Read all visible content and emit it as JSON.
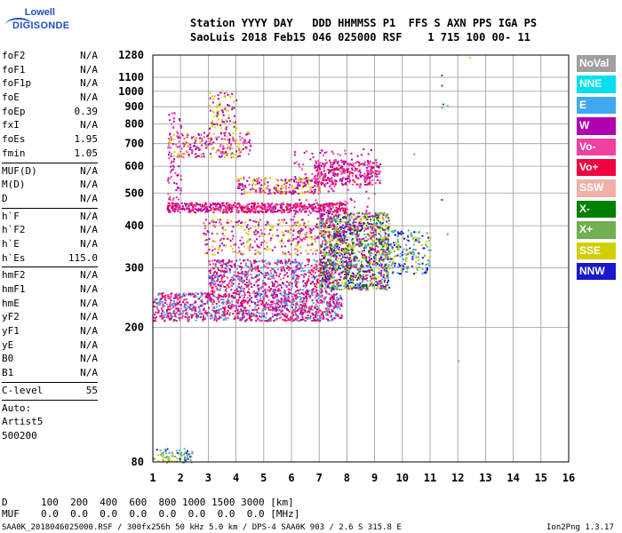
{
  "logo": {
    "line1": "Lowell",
    "line2": "DIGISONDE"
  },
  "header": {
    "row1": "Station YYYY DAY   DDD HHMMSS P1  FFS S AXN PPS IGA PS",
    "row2": "SaoLuis 2018 Feb15 046 025000 RSF    1 715 100 00- 11"
  },
  "parameters": {
    "group1": [
      {
        "name": "foF2",
        "value": "N/A"
      },
      {
        "name": "foF1",
        "value": "N/A"
      },
      {
        "name": "foF1p",
        "value": "N/A"
      },
      {
        "name": "foE",
        "value": "N/A"
      },
      {
        "name": "foEp",
        "value": "0.39"
      },
      {
        "name": "fxI",
        "value": "N/A"
      },
      {
        "name": "foEs",
        "value": "1.95"
      },
      {
        "name": "fmin",
        "value": "1.05"
      }
    ],
    "group2": [
      {
        "name": "MUF(D)",
        "value": "N/A"
      },
      {
        "name": "M(D)",
        "value": "N/A"
      },
      {
        "name": "D",
        "value": "N/A"
      }
    ],
    "group3": [
      {
        "name": "h`F",
        "value": "N/A"
      },
      {
        "name": "h`F2",
        "value": "N/A"
      },
      {
        "name": "h`E",
        "value": "N/A"
      },
      {
        "name": "h`Es",
        "value": "115.0"
      }
    ],
    "group4": [
      {
        "name": "hmF2",
        "value": "N/A"
      },
      {
        "name": "hmF1",
        "value": "N/A"
      },
      {
        "name": "hmE",
        "value": "N/A"
      },
      {
        "name": "yF2",
        "value": "N/A"
      },
      {
        "name": "yF1",
        "value": "N/A"
      },
      {
        "name": "yE",
        "value": "N/A"
      },
      {
        "name": "B0",
        "value": "N/A"
      },
      {
        "name": "B1",
        "value": "N/A"
      }
    ],
    "group5": [
      {
        "name": "C-level",
        "value": "55"
      }
    ],
    "autoscaling": [
      "Auto:",
      "Artist5",
      "500200"
    ]
  },
  "legend": [
    {
      "label": "NoVal",
      "color": "#a0a0a0"
    },
    {
      "label": "NNE",
      "color": "#00e0f0"
    },
    {
      "label": "E",
      "color": "#40a8f0"
    },
    {
      "label": "W",
      "color": "#b000b0"
    },
    {
      "label": "Vo-",
      "color": "#f040a0"
    },
    {
      "label": "Vo+",
      "color": "#f00040"
    },
    {
      "label": "SSW",
      "color": "#f0b0a8"
    },
    {
      "label": "X-",
      "color": "#008000"
    },
    {
      "label": "X+",
      "color": "#70b050"
    },
    {
      "label": "SSE",
      "color": "#d0d000"
    },
    {
      "label": "NNW",
      "color": "#1818d0"
    }
  ],
  "chart_data": {
    "type": "scatter",
    "xlim": [
      1,
      16
    ],
    "ylim": [
      80,
      1280
    ],
    "x_ticks": [
      "1",
      "2",
      "3",
      "4",
      "5",
      "6",
      "7",
      "8",
      "9",
      "10",
      "11",
      "12",
      "13",
      "14",
      "15",
      "16"
    ],
    "y_ticks": [
      "80",
      "200",
      "300",
      "400",
      "500",
      "600",
      "700",
      "800",
      "900",
      "1000",
      "1100",
      "1280"
    ],
    "y_log_scale": true,
    "grid": true,
    "clusters": [
      {
        "x": [
          1.0,
          2.4
        ],
        "y": [
          80,
          88
        ],
        "color_mix": [
          "#1818d0",
          "#40a8f0",
          "#70b050",
          "#d0d000"
        ],
        "count": 80
      },
      {
        "x": [
          1.0,
          7.8
        ],
        "y": [
          210,
          255
        ],
        "color_mix": [
          "#f00040",
          "#f040a0",
          "#b000b0",
          "#40a8f0"
        ],
        "count": 1200
      },
      {
        "x": [
          3.0,
          7.5
        ],
        "y": [
          255,
          320
        ],
        "color_mix": [
          "#f00040",
          "#b000b0",
          "#f040a0",
          "#40a8f0"
        ],
        "count": 700
      },
      {
        "x": [
          7.0,
          9.5
        ],
        "y": [
          260,
          440
        ],
        "color_mix": [
          "#f00040",
          "#b000b0",
          "#40a8f0",
          "#008000",
          "#70b050",
          "#d0d000",
          "#1818d0"
        ],
        "count": 1300
      },
      {
        "x": [
          9.3,
          11.0
        ],
        "y": [
          290,
          390
        ],
        "color_mix": [
          "#d0d000",
          "#70b050",
          "#40a8f0",
          "#1818d0"
        ],
        "count": 220
      },
      {
        "x": [
          1.5,
          8.0
        ],
        "y": [
          440,
          470
        ],
        "color_mix": [
          "#f00040",
          "#b000b0",
          "#f040a0"
        ],
        "count": 600
      },
      {
        "x": [
          2.8,
          7.0
        ],
        "y": [
          330,
          420
        ],
        "color_mix": [
          "#b000b0",
          "#f040a0",
          "#d0d000"
        ],
        "count": 300
      },
      {
        "x": [
          4.0,
          7.0
        ],
        "y": [
          500,
          560
        ],
        "color_mix": [
          "#b000b0",
          "#f040a0",
          "#d0d000"
        ],
        "count": 250
      },
      {
        "x": [
          6.8,
          9.2
        ],
        "y": [
          530,
          630
        ],
        "color_mix": [
          "#b000b0",
          "#f040a0",
          "#f00040"
        ],
        "count": 300
      },
      {
        "x": [
          1.5,
          4.5
        ],
        "y": [
          640,
          760
        ],
        "color_mix": [
          "#b000b0",
          "#f040a0",
          "#d0d000"
        ],
        "count": 250
      },
      {
        "x": [
          3.0,
          4.0
        ],
        "y": [
          760,
          1000
        ],
        "color_mix": [
          "#d0d000",
          "#b000b0"
        ],
        "count": 90
      },
      {
        "x": [
          1.5,
          2.0
        ],
        "y": [
          450,
          880
        ],
        "color_mix": [
          "#b000b0",
          "#f040a0"
        ],
        "count": 80
      },
      {
        "x": [
          6.0,
          9.0
        ],
        "y": [
          360,
          680
        ],
        "color_mix": [
          "#b000b0",
          "#f040a0"
        ],
        "count": 220
      }
    ],
    "isolated_points": [
      {
        "x": 11.4,
        "y": 1120,
        "color": "#008000"
      },
      {
        "x": 11.4,
        "y": 1045,
        "color": "#008000"
      },
      {
        "x": 11.45,
        "y": 920,
        "color": "#008000"
      },
      {
        "x": 11.4,
        "y": 900,
        "color": "#40a8f0"
      },
      {
        "x": 11.6,
        "y": 910,
        "color": "#40a8f0"
      },
      {
        "x": 12.4,
        "y": 1265,
        "color": "#d0d000"
      },
      {
        "x": 10.4,
        "y": 655,
        "color": "#40a8f0"
      },
      {
        "x": 12.0,
        "y": 160,
        "color": "#40a8f0"
      },
      {
        "x": 11.4,
        "y": 480,
        "color": "#b000b0"
      },
      {
        "x": 11.6,
        "y": 380,
        "color": "#f040a0"
      }
    ]
  },
  "footer": {
    "d_label": "D",
    "muf_label": "MUF",
    "d_values": "100  200  400  600  800 1000 1500 3000 [km]",
    "muf_values": "0.0  0.0  0.0  0.0  0.0  0.0  0.0  0.0 [MHz]",
    "source_line": "SAA0K_2018046025000.RSF / 300fx256h 50 kHz 5.0 km / DPS-4 SAA0K 903 / 2.6 S 315.8 E",
    "version": "Ion2Png 1.3.17"
  }
}
